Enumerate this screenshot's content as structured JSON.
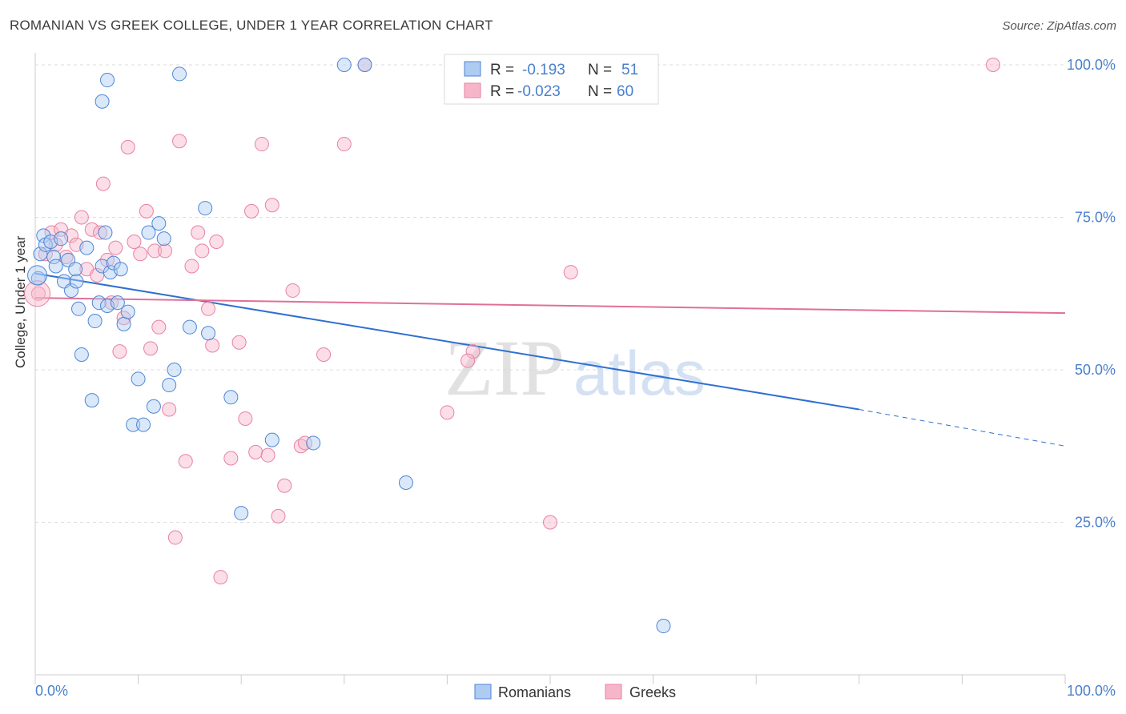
{
  "header": {
    "title": "ROMANIAN VS GREEK COLLEGE, UNDER 1 YEAR CORRELATION CHART",
    "source": "Source: ZipAtlas.com"
  },
  "colors": {
    "blue": "#4f86d6",
    "blue_fill": "#aecbf2",
    "blue_line": "#2f6fd1",
    "pink": "#e882a2",
    "pink_fill": "#f6b6c9",
    "pink_line": "#e07099",
    "axis_text": "#4a80cc",
    "grid": "#dddddd"
  },
  "chart_data": {
    "type": "scatter",
    "title": "ROMANIAN VS GREEK COLLEGE, UNDER 1 YEAR CORRELATION CHART",
    "xlabel": "",
    "ylabel": "College, Under 1 year",
    "xlim": [
      0,
      100
    ],
    "ylim": [
      0,
      104
    ],
    "x_tick_labels": [
      "0.0%",
      "100.0%"
    ],
    "y_ticks": [
      25,
      50,
      75,
      100
    ],
    "y_tick_labels": [
      "25.0%",
      "50.0%",
      "75.0%",
      "100.0%"
    ],
    "watermark": {
      "zip": "ZIP",
      "atlas": "atlas"
    },
    "legend_stats": [
      {
        "r_label": "R =",
        "r_value": "-0.193",
        "n_label": "N =",
        "n_value": "51"
      },
      {
        "r_label": "R =",
        "r_value": "-0.023",
        "n_label": "N =",
        "n_value": "60"
      }
    ],
    "series": [
      {
        "name": "Romanians",
        "color": "#4f86d6",
        "trend": {
          "x0": 0,
          "y0": 65.8,
          "x1": 80,
          "y1": 43.5,
          "dash_to_x": 100,
          "dash_to_y": 37.5
        },
        "points": [
          [
            0.3,
            65.0
          ],
          [
            0.5,
            69.0
          ],
          [
            0.8,
            72.0
          ],
          [
            1.0,
            70.5
          ],
          [
            1.5,
            71.0
          ],
          [
            1.8,
            68.5
          ],
          [
            2.0,
            67.0
          ],
          [
            2.5,
            71.5
          ],
          [
            2.8,
            64.5
          ],
          [
            3.2,
            68.0
          ],
          [
            3.5,
            63.0
          ],
          [
            3.9,
            66.5
          ],
          [
            4.2,
            60.0
          ],
          [
            4.5,
            52.5
          ],
          [
            5.0,
            70.0
          ],
          [
            5.5,
            45.0
          ],
          [
            5.8,
            58.0
          ],
          [
            6.2,
            61.0
          ],
          [
            6.5,
            67.0
          ],
          [
            6.8,
            72.5
          ],
          [
            7.0,
            60.5
          ],
          [
            7.3,
            66.0
          ],
          [
            7.6,
            67.5
          ],
          [
            8.0,
            61.0
          ],
          [
            8.3,
            66.5
          ],
          [
            8.6,
            57.5
          ],
          [
            9.5,
            41.0
          ],
          [
            10.0,
            48.5
          ],
          [
            10.5,
            41.0
          ],
          [
            11.0,
            72.5
          ],
          [
            11.5,
            44.0
          ],
          [
            12.0,
            74.0
          ],
          [
            12.5,
            71.5
          ],
          [
            13.0,
            47.5
          ],
          [
            13.5,
            50.0
          ],
          [
            14.0,
            98.5
          ],
          [
            15.0,
            57.0
          ],
          [
            16.5,
            76.5
          ],
          [
            16.8,
            56.0
          ],
          [
            19.0,
            45.5
          ],
          [
            20.0,
            26.5
          ],
          [
            23.0,
            38.5
          ],
          [
            27.0,
            38.0
          ],
          [
            30.0,
            100.0
          ],
          [
            32.0,
            100.0
          ],
          [
            36.0,
            31.5
          ],
          [
            6.5,
            94.0
          ],
          [
            7.0,
            97.5
          ],
          [
            4.0,
            64.5
          ],
          [
            9.0,
            59.5
          ],
          [
            61.0,
            8.0
          ]
        ]
      },
      {
        "name": "Greeks",
        "color": "#e882a2",
        "trend": {
          "x0": 0,
          "y0": 61.8,
          "x1": 100,
          "y1": 59.3
        },
        "points": [
          [
            0.3,
            62.5
          ],
          [
            1.0,
            69.0
          ],
          [
            1.6,
            72.5
          ],
          [
            2.0,
            70.5
          ],
          [
            2.5,
            73.0
          ],
          [
            3.0,
            68.5
          ],
          [
            3.5,
            72.0
          ],
          [
            4.0,
            70.5
          ],
          [
            4.5,
            75.0
          ],
          [
            5.0,
            66.5
          ],
          [
            5.5,
            73.0
          ],
          [
            6.0,
            65.5
          ],
          [
            6.3,
            72.5
          ],
          [
            6.6,
            80.5
          ],
          [
            7.0,
            68.0
          ],
          [
            7.4,
            61.0
          ],
          [
            7.8,
            70.0
          ],
          [
            8.2,
            53.0
          ],
          [
            8.6,
            58.5
          ],
          [
            9.0,
            86.5
          ],
          [
            9.6,
            71.0
          ],
          [
            10.2,
            69.0
          ],
          [
            10.8,
            76.0
          ],
          [
            11.2,
            53.5
          ],
          [
            11.6,
            69.5
          ],
          [
            12.0,
            57.0
          ],
          [
            12.6,
            69.5
          ],
          [
            13.0,
            43.5
          ],
          [
            13.6,
            22.5
          ],
          [
            14.0,
            87.5
          ],
          [
            14.6,
            35.0
          ],
          [
            15.2,
            67.0
          ],
          [
            15.8,
            72.5
          ],
          [
            16.2,
            69.5
          ],
          [
            16.8,
            60.0
          ],
          [
            17.2,
            54.0
          ],
          [
            17.6,
            71.0
          ],
          [
            18.0,
            16.0
          ],
          [
            19.0,
            35.5
          ],
          [
            19.8,
            54.5
          ],
          [
            20.4,
            42.0
          ],
          [
            21.0,
            76.0
          ],
          [
            21.4,
            36.5
          ],
          [
            22.0,
            87.0
          ],
          [
            22.6,
            36.0
          ],
          [
            23.0,
            77.0
          ],
          [
            23.6,
            26.0
          ],
          [
            24.2,
            31.0
          ],
          [
            25.0,
            63.0
          ],
          [
            25.8,
            37.5
          ],
          [
            26.2,
            38.0
          ],
          [
            28.0,
            52.5
          ],
          [
            30.0,
            87.0
          ],
          [
            32.0,
            100.0
          ],
          [
            40.0,
            43.0
          ],
          [
            42.5,
            53.0
          ],
          [
            42.0,
            51.5
          ],
          [
            50.0,
            25.0
          ],
          [
            52.0,
            66.0
          ],
          [
            93.0,
            100.0
          ]
        ]
      }
    ]
  }
}
